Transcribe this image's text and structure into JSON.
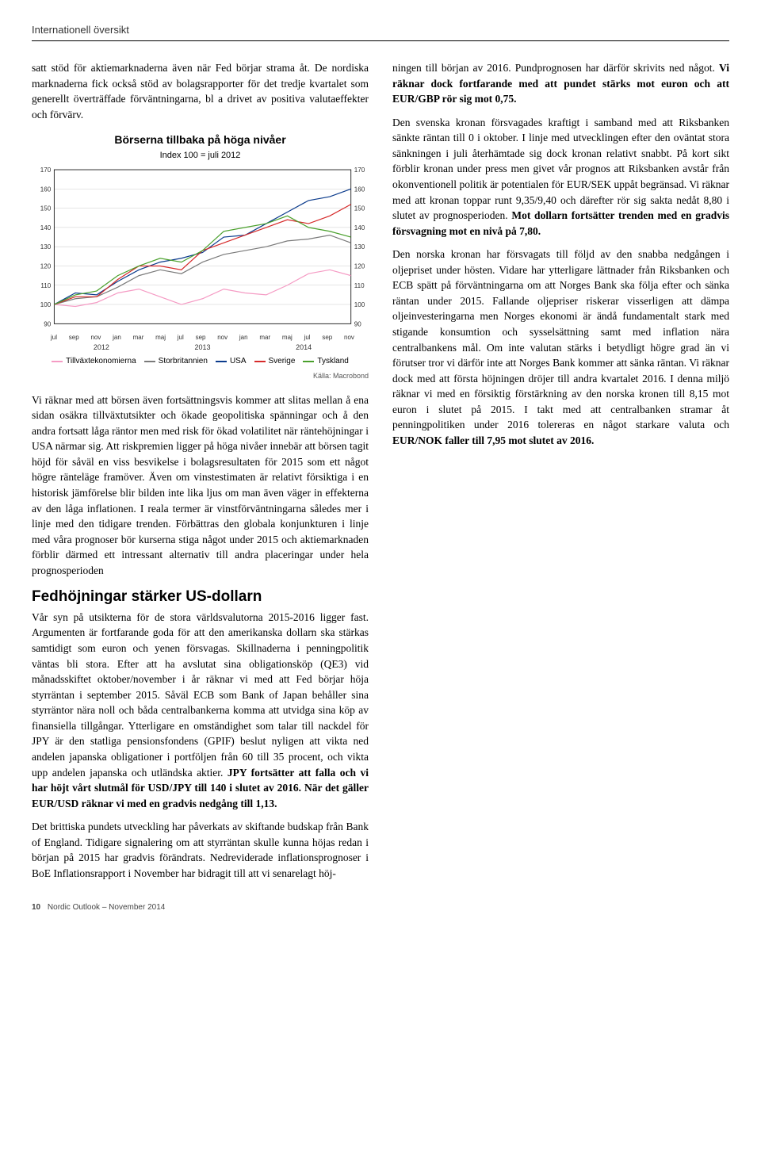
{
  "header": "Internationell översikt",
  "left": {
    "p1a": "satt stöd för aktiemarknaderna även när Fed börjar strama åt. De nordiska marknaderna fick också stöd av bolagsrapporter för det tredje kvartalet som generellt överträffade förväntningarna, bl a drivet av positiva valutaeffekter och förvärv.",
    "p2": "Vi räknar med att börsen även fortsättningsvis kommer att slitas mellan å ena sidan osäkra tillväxtutsikter och ökade geopolitiska spänningar och å den andra fortsatt låga räntor men med risk för ökad volatilitet när räntehöjningar i USA närmar sig. Att riskpremien ligger på höga nivåer innebär att börsen tagit höjd för såväl en viss besvikelse i bolagsresultaten för 2015 som ett något högre ränteläge framöver. Även om vinstestimaten är relativt försiktiga i en historisk jämförelse blir bilden inte lika ljus om man även väger in effekterna av den låga inflationen. I reala termer är vinstförväntningarna således mer i linje med den tidigare trenden. Förbättras den globala konjunkturen i linje med våra prognoser bör kurserna stiga något under 2015 och aktiemarknaden förblir därmed ett intressant alternativ till andra placeringar under hela prognosperioden",
    "h2": "Fedhöjningar stärker US-dollarn",
    "p3a": "Vår syn på utsikterna för de stora världsvalutorna 2015-2016 ligger fast. Argumenten är fortfarande goda för att den amerikanska dollarn ska stärkas samtidigt som euron och yenen försvagas. Skillnaderna i penningpolitik väntas bli stora. Efter att ha avslutat sina obligationsköp (QE3) vid månadsskiftet oktober/november i år räknar vi med att Fed börjar höja styrräntan i september 2015. Såväl ECB som Bank of Japan behåller sina styrräntor nära noll och båda centralbankerna komma att utvidga sina köp av finansiella tillgångar. Ytterligare en omständighet som talar till nackdel för JPY är den statliga pensionsfondens (GPIF) beslut nyligen att vikta ned andelen japanska obligationer i portföljen från 60 till 35 procent, och vikta upp andelen japanska och utländska aktier. ",
    "p3b": "JPY fortsätter att falla och vi har höjt vårt slutmål för USD/JPY till 140 i slutet av 2016. När det gäller EUR/USD räknar vi med en gradvis nedgång till 1,13.",
    "p4": "Det brittiska pundets utveckling har påverkats av skiftande budskap från Bank of England. Tidigare signalering om att styrräntan skulle kunna höjas redan i början på 2015 har gradvis förändrats. Nedreviderade inflationsprognoser i BoE Inflationsrapport i November har bidragit till att vi senarelagt höj-"
  },
  "right": {
    "p1a": "ningen till början av 2016. Pundprognosen har därför skrivits ned något. ",
    "p1b": "Vi räknar dock fortfarande med att pundet stärks mot euron och att EUR/GBP rör sig mot 0,75.",
    "p2a": "Den svenska kronan försvagades kraftigt i samband med att Riksbanken sänkte räntan till 0 i oktober. I linje med utvecklingen efter den oväntat stora sänkningen i juli återhämtade sig dock kronan relativt snabbt. På kort sikt förblir kronan under press men givet vår prognos att Riksbanken avstår från okonventionell politik är potentialen för EUR/SEK uppåt begränsad. Vi räknar med att kronan toppar runt 9,35/9,40 och därefter rör sig sakta nedåt 8,80 i slutet av prognosperioden. ",
    "p2b": "Mot dollarn fortsätter trenden med en gradvis försvagning mot en nivå på 7,80.",
    "p3a": "Den norska kronan har försvagats till följd av den snabba nedgången i oljepriset under hösten. Vidare har ytterligare lättnader från Riksbanken och ECB spätt på förväntningarna om att Norges Bank ska följa efter och sänka räntan under 2015. Fallande oljepriser riskerar visserligen att dämpa oljeinvesteringarna men Norges ekonomi är ändå fundamentalt stark med stigande konsumtion och sysselsättning samt med inflation nära centralbankens mål. Om inte valutan stärks i betydligt högre grad än vi förutser tror vi därför inte att Norges Bank kommer att sänka räntan. Vi räknar dock med att första höjningen dröjer till andra kvartalet 2016. I denna miljö räknar vi med en försiktig förstärkning av den norska kronen till 8,15 mot euron i slutet på 2015. I takt med att centralbanken stramar åt penningpolitiken under 2016 tolereras en något starkare valuta och ",
    "p3b": "EUR/NOK faller till 7,95 mot slutet av 2016."
  },
  "chart": {
    "title": "Börserna tillbaka på höga nivåer",
    "subtitle": "Index 100 = juli 2012",
    "ylim": [
      90,
      170
    ],
    "yticks": [
      90,
      100,
      110,
      120,
      130,
      140,
      150,
      160,
      170
    ],
    "xticks": [
      "jul",
      "sep",
      "nov",
      "jan",
      "mar",
      "maj",
      "jul",
      "sep",
      "nov",
      "jan",
      "mar",
      "maj",
      "jul",
      "sep",
      "nov"
    ],
    "years": [
      "2012",
      "2013",
      "2014"
    ],
    "source": "Källa: Macrobond",
    "background_color": "#ffffff",
    "grid_color": "#cccccc",
    "axis_color": "#000000",
    "tick_fontsize": 8,
    "line_width": 1.2,
    "series": [
      {
        "name": "Tillväxtekonomierna",
        "color": "#f59bc4",
        "values": [
          100,
          99,
          101,
          106,
          108,
          104,
          100,
          103,
          108,
          106,
          105,
          110,
          116,
          118,
          115
        ]
      },
      {
        "name": "Storbritannien",
        "color": "#7a7a7a",
        "values": [
          100,
          103,
          104,
          109,
          115,
          118,
          116,
          122,
          126,
          128,
          130,
          133,
          134,
          136,
          132
        ]
      },
      {
        "name": "USA",
        "color": "#0b3b8c",
        "values": [
          100,
          106,
          105,
          112,
          118,
          122,
          124,
          127,
          135,
          136,
          142,
          148,
          154,
          156,
          160
        ]
      },
      {
        "name": "Sverige",
        "color": "#d62a2a",
        "values": [
          100,
          104,
          104,
          113,
          120,
          120,
          118,
          128,
          132,
          136,
          140,
          144,
          142,
          146,
          152
        ]
      },
      {
        "name": "Tyskland",
        "color": "#4aa02c",
        "values": [
          100,
          105,
          107,
          115,
          120,
          124,
          122,
          128,
          138,
          140,
          142,
          146,
          140,
          138,
          135
        ]
      }
    ]
  },
  "footer": {
    "page": "10",
    "pub": "Nordic Outlook – November 2014"
  }
}
